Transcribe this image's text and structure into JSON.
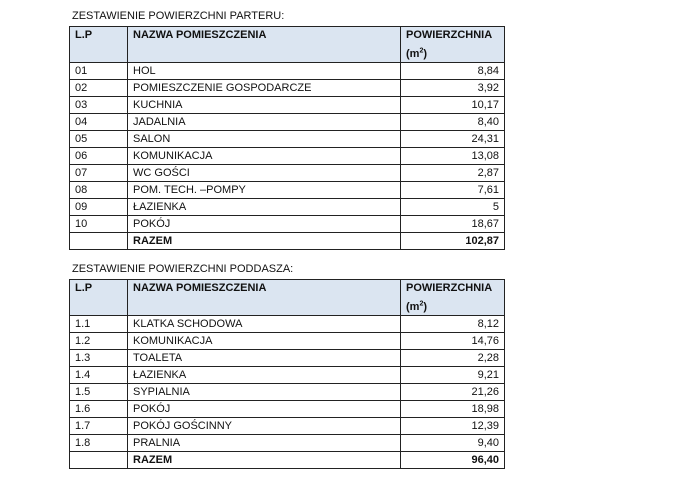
{
  "tables": [
    {
      "title": "ZESTAWIENIE POWIERZCHNI PARTERU:",
      "headers": {
        "lp": "L.P",
        "name": "NAZWA POMIESZCZENIA",
        "area": "POWIERZCHNIA",
        "unit_pre": "(m",
        "unit_sup": "2",
        "unit_post": ")"
      },
      "rows": [
        [
          "01",
          "HOL",
          "8,84"
        ],
        [
          "02",
          "POMIESZCZENIE GOSPODARCZE",
          "3,92"
        ],
        [
          "03",
          "KUCHNIA",
          "10,17"
        ],
        [
          "04",
          "JADALNIA",
          "8,40"
        ],
        [
          "05",
          "SALON",
          "24,31"
        ],
        [
          "06",
          "KOMUNIKACJA",
          "13,08"
        ],
        [
          "07",
          "WC GOŚCI",
          "2,87"
        ],
        [
          "08",
          "POM. TECH. –POMPY",
          "7,61"
        ],
        [
          "09",
          "ŁAZIENKA",
          "5"
        ],
        [
          "10",
          "POKÓJ",
          "18,67"
        ]
      ],
      "total": {
        "label": "RAZEM",
        "value": "102,87"
      }
    },
    {
      "title": "ZESTAWIENIE POWIERZCHNI PODDASZA:",
      "headers": {
        "lp": "L.P",
        "name": "NAZWA POMIESZCZENIA",
        "area": "POWIERZCHNIA",
        "unit_pre": "(m",
        "unit_sup": "2",
        "unit_post": ")"
      },
      "rows": [
        [
          "1.1",
          "KLATKA SCHODOWA",
          "8,12"
        ],
        [
          "1.2",
          "KOMUNIKACJA",
          "14,76"
        ],
        [
          "1.3",
          "TOALETA",
          "2,28"
        ],
        [
          "1.4",
          "ŁAZIENKA",
          "9,21"
        ],
        [
          "1.5",
          "SYPIALNIA",
          "21,26"
        ],
        [
          "1.6",
          "POKÓJ",
          "18,98"
        ],
        [
          "1.7",
          "POKÓJ GOŚCINNY",
          "12,39"
        ],
        [
          "1.8",
          "PRALNIA",
          "9,40"
        ]
      ],
      "total": {
        "label": "RAZEM",
        "value": "96,40"
      }
    }
  ]
}
